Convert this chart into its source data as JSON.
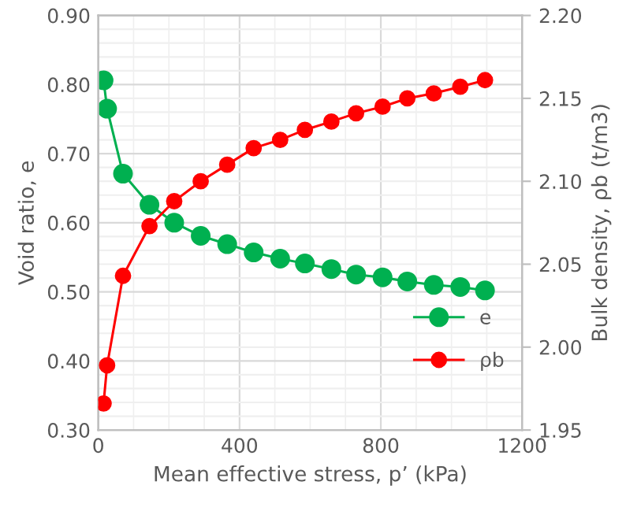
{
  "chart_data": {
    "type": "line",
    "xlabel": "Mean effective stress, p’ (kPa)",
    "ylabel": "Void ratio, e",
    "y2label": "Bulk density, ρb (t/m3)",
    "x": [
      15,
      25,
      70,
      145,
      215,
      290,
      365,
      440,
      515,
      585,
      660,
      730,
      805,
      875,
      950,
      1025,
      1095
    ],
    "series": [
      {
        "name": "e",
        "color": "#00b050",
        "marker": "circle",
        "values": [
          0.806,
          0.765,
          0.671,
          0.626,
          0.6,
          0.581,
          0.569,
          0.557,
          0.548,
          0.541,
          0.533,
          0.525,
          0.521,
          0.515,
          0.51,
          0.507,
          0.502
        ]
      },
      {
        "name": "ρb",
        "color": "#ff0000",
        "marker": "circle",
        "axis": "y2",
        "values": [
          1.966,
          1.989,
          2.043,
          2.073,
          2.088,
          2.1,
          2.11,
          2.12,
          2.125,
          2.131,
          2.136,
          2.141,
          2.145,
          2.15,
          2.153,
          2.157,
          2.161
        ]
      }
    ],
    "xlim": [
      0,
      1200
    ],
    "xticks": [
      0,
      400,
      800,
      1200
    ],
    "ylim": [
      0.3,
      0.9
    ],
    "yticks": [
      {
        "value": 0.3,
        "label": "0.30"
      },
      {
        "value": 0.4,
        "label": "0.40"
      },
      {
        "value": 0.5,
        "label": "0.50"
      },
      {
        "value": 0.6,
        "label": "0.60"
      },
      {
        "value": 0.7,
        "label": "0.70"
      },
      {
        "value": 0.8,
        "label": "0.80"
      },
      {
        "value": 0.9,
        "label": "0.90"
      }
    ],
    "y2lim": [
      1.95,
      2.2
    ],
    "y2ticks": [
      {
        "value": 1.95,
        "label": "1.95"
      },
      {
        "value": 2.0,
        "label": "2.00"
      },
      {
        "value": 2.05,
        "label": "2.05"
      },
      {
        "value": 2.1,
        "label": "2.10"
      },
      {
        "value": 2.15,
        "label": "2.15"
      },
      {
        "value": 2.2,
        "label": "2.20"
      }
    ],
    "grid": true,
    "legend": "lower right",
    "line_style": "solid"
  }
}
